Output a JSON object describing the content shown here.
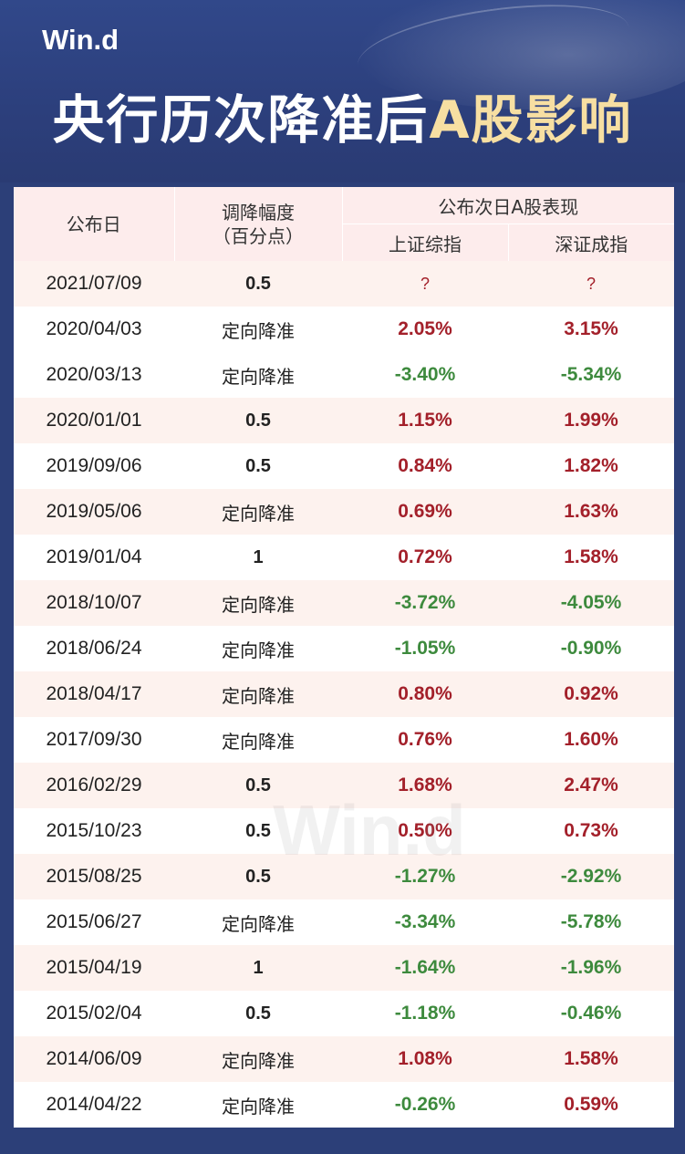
{
  "header": {
    "logo": "Win.d",
    "title_main": "央行历次降准后",
    "title_highlight": "A股影响"
  },
  "table": {
    "col_date": "公布日",
    "col_cut_line1": "调降幅度",
    "col_cut_line2": "（百分点）",
    "col_group": "公布次日A股表现",
    "col_sh": "上证综指",
    "col_sz": "深证成指"
  },
  "watermark": "Win.d",
  "rows": [
    {
      "date": "2021/07/09",
      "cut": "0.5",
      "sh": "?",
      "sz": "?"
    },
    {
      "date": "2020/04/03",
      "cut": "定向降准",
      "sh": "2.05%",
      "sz": "3.15%"
    },
    {
      "date": "2020/03/13",
      "cut": "定向降准",
      "sh": "-3.40%",
      "sz": "-5.34%"
    },
    {
      "date": "2020/01/01",
      "cut": "0.5",
      "sh": "1.15%",
      "sz": "1.99%"
    },
    {
      "date": "2019/09/06",
      "cut": "0.5",
      "sh": "0.84%",
      "sz": "1.82%"
    },
    {
      "date": "2019/05/06",
      "cut": "定向降准",
      "sh": "0.69%",
      "sz": "1.63%"
    },
    {
      "date": "2019/01/04",
      "cut": "1",
      "sh": "0.72%",
      "sz": "1.58%"
    },
    {
      "date": "2018/10/07",
      "cut": "定向降准",
      "sh": "-3.72%",
      "sz": "-4.05%"
    },
    {
      "date": "2018/06/24",
      "cut": "定向降准",
      "sh": "-1.05%",
      "sz": "-0.90%"
    },
    {
      "date": "2018/04/17",
      "cut": "定向降准",
      "sh": "0.80%",
      "sz": "0.92%"
    },
    {
      "date": "2017/09/30",
      "cut": "定向降准",
      "sh": "0.76%",
      "sz": "1.60%"
    },
    {
      "date": "2016/02/29",
      "cut": "0.5",
      "sh": "1.68%",
      "sz": "2.47%"
    },
    {
      "date": "2015/10/23",
      "cut": "0.5",
      "sh": "0.50%",
      "sz": "0.73%"
    },
    {
      "date": "2015/08/25",
      "cut": "0.5",
      "sh": "-1.27%",
      "sz": "-2.92%"
    },
    {
      "date": "2015/06/27",
      "cut": "定向降准",
      "sh": "-3.34%",
      "sz": "-5.78%"
    },
    {
      "date": "2015/04/19",
      "cut": "1",
      "sh": "-1.64%",
      "sz": "-1.96%"
    },
    {
      "date": "2015/02/04",
      "cut": "0.5",
      "sh": "-1.18%",
      "sz": "-0.46%"
    },
    {
      "date": "2014/06/09",
      "cut": "定向降准",
      "sh": "1.08%",
      "sz": "1.58%"
    },
    {
      "date": "2014/04/22",
      "cut": "定向降准",
      "sh": "-0.26%",
      "sz": "0.59%"
    }
  ],
  "colors": {
    "positive": "#a3202a",
    "negative": "#3d8a3d",
    "header_bg": "#2c3f78",
    "title_highlight": "#f7dfa2"
  }
}
